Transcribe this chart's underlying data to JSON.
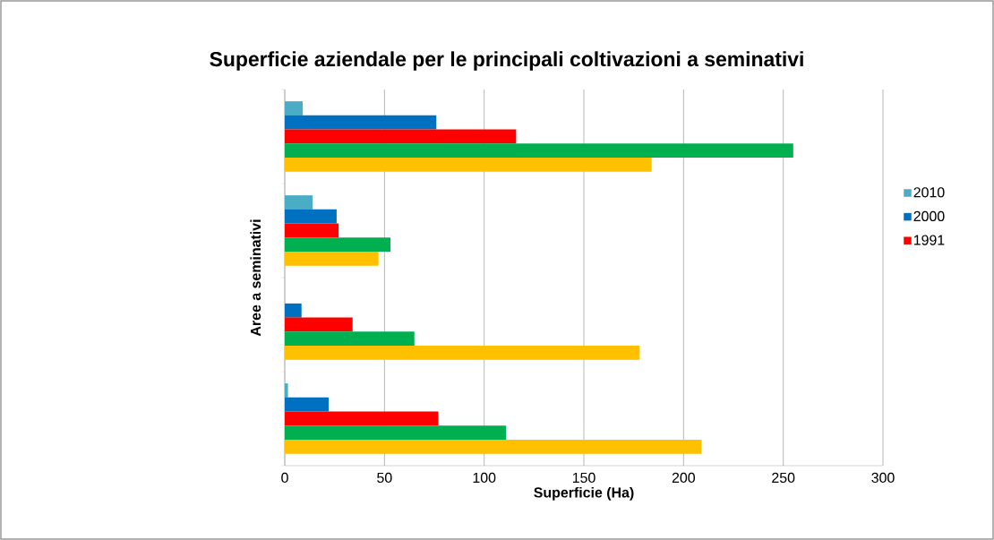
{
  "chart_data": {
    "type": "bar",
    "orientation": "horizontal",
    "title": "Superficie aziendale per le principali coltivazioni a seminativi",
    "xlabel": "Superficie (Ha)",
    "ylabel": "Aree a seminativi",
    "categories": [
      null,
      null,
      null,
      null
    ],
    "series": [
      {
        "name": "2010",
        "color": "#4bacc6",
        "values": [
          9,
          14,
          null,
          1.6
        ]
      },
      {
        "name": "2000",
        "color": "#0070c0",
        "values": [
          76,
          26,
          8.4,
          22
        ]
      },
      {
        "name": "1991",
        "color": "#ff0000",
        "values": [
          116,
          27,
          34,
          77
        ]
      },
      {
        "color": "#00b050",
        "values": [
          255,
          53,
          65,
          111
        ]
      },
      {
        "color": "#ffc000",
        "values": [
          184,
          47,
          178,
          209
        ]
      }
    ],
    "xlim": [
      0,
      300
    ],
    "xticks": [
      0,
      50,
      100,
      150,
      200,
      250,
      300
    ],
    "grid": "x",
    "legend": "right"
  }
}
